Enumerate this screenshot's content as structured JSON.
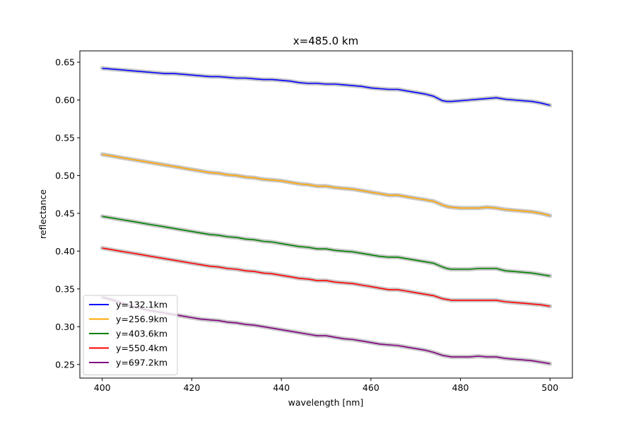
{
  "chart_data": {
    "type": "line",
    "title": "x=485.0 km",
    "xlabel": "wavelength [nm]",
    "ylabel": "reflectance",
    "xlim": [
      395,
      505
    ],
    "ylim": [
      0.232,
      0.665
    ],
    "xticks": [
      400,
      420,
      440,
      460,
      480,
      500
    ],
    "yticks": [
      0.25,
      0.3,
      0.35,
      0.4,
      0.45,
      0.5,
      0.55,
      0.6,
      0.65
    ],
    "ytick_labels": [
      "0.25",
      "0.30",
      "0.35",
      "0.40",
      "0.45",
      "0.50",
      "0.55",
      "0.60",
      "0.65"
    ],
    "grid": false,
    "legend_position": "lower-left",
    "uncertainty_band_color": "#c8c8c8",
    "x": [
      400,
      402,
      404,
      406,
      408,
      410,
      412,
      414,
      416,
      418,
      420,
      422,
      424,
      426,
      428,
      430,
      432,
      434,
      436,
      438,
      440,
      442,
      444,
      446,
      448,
      450,
      452,
      454,
      456,
      458,
      460,
      462,
      464,
      466,
      468,
      470,
      472,
      474,
      476,
      477,
      478,
      480,
      482,
      484,
      486,
      488,
      490,
      492,
      494,
      496,
      498,
      500
    ],
    "series": [
      {
        "name": "y=132.1km",
        "color": "#0000ff",
        "values": [
          0.642,
          0.641,
          0.64,
          0.639,
          0.638,
          0.637,
          0.636,
          0.635,
          0.635,
          0.634,
          0.633,
          0.632,
          0.631,
          0.631,
          0.63,
          0.629,
          0.629,
          0.628,
          0.627,
          0.627,
          0.626,
          0.625,
          0.623,
          0.622,
          0.622,
          0.621,
          0.621,
          0.62,
          0.619,
          0.618,
          0.616,
          0.615,
          0.614,
          0.614,
          0.612,
          0.61,
          0.608,
          0.605,
          0.599,
          0.598,
          0.598,
          0.599,
          0.6,
          0.601,
          0.602,
          0.603,
          0.601,
          0.6,
          0.599,
          0.598,
          0.596,
          0.593
        ]
      },
      {
        "name": "y=256.9km",
        "color": "#ffa500",
        "values": [
          0.528,
          0.526,
          0.524,
          0.522,
          0.52,
          0.518,
          0.516,
          0.514,
          0.512,
          0.51,
          0.508,
          0.506,
          0.504,
          0.503,
          0.501,
          0.5,
          0.498,
          0.497,
          0.495,
          0.494,
          0.493,
          0.491,
          0.489,
          0.488,
          0.486,
          0.486,
          0.484,
          0.483,
          0.482,
          0.48,
          0.478,
          0.476,
          0.474,
          0.474,
          0.472,
          0.47,
          0.468,
          0.466,
          0.461,
          0.459,
          0.458,
          0.457,
          0.457,
          0.457,
          0.458,
          0.457,
          0.455,
          0.454,
          0.453,
          0.452,
          0.45,
          0.447
        ]
      },
      {
        "name": "y=403.6km",
        "color": "#008000",
        "values": [
          0.446,
          0.444,
          0.442,
          0.44,
          0.438,
          0.436,
          0.434,
          0.432,
          0.43,
          0.428,
          0.426,
          0.424,
          0.422,
          0.421,
          0.419,
          0.418,
          0.416,
          0.415,
          0.413,
          0.412,
          0.41,
          0.408,
          0.406,
          0.405,
          0.403,
          0.403,
          0.401,
          0.4,
          0.399,
          0.397,
          0.395,
          0.393,
          0.392,
          0.392,
          0.39,
          0.388,
          0.386,
          0.384,
          0.379,
          0.377,
          0.376,
          0.376,
          0.376,
          0.377,
          0.377,
          0.377,
          0.374,
          0.373,
          0.372,
          0.371,
          0.369,
          0.367
        ]
      },
      {
        "name": "y=550.4km",
        "color": "#ff0000",
        "values": [
          0.404,
          0.402,
          0.4,
          0.398,
          0.396,
          0.394,
          0.392,
          0.39,
          0.388,
          0.386,
          0.384,
          0.382,
          0.38,
          0.379,
          0.377,
          0.376,
          0.374,
          0.373,
          0.371,
          0.37,
          0.368,
          0.366,
          0.364,
          0.363,
          0.361,
          0.361,
          0.359,
          0.358,
          0.357,
          0.355,
          0.353,
          0.351,
          0.349,
          0.349,
          0.347,
          0.345,
          0.343,
          0.341,
          0.337,
          0.336,
          0.335,
          0.335,
          0.335,
          0.335,
          0.335,
          0.335,
          0.333,
          0.332,
          0.331,
          0.33,
          0.329,
          0.327
        ]
      },
      {
        "name": "y=697.2km",
        "color": "#800080",
        "values": [
          0.339,
          0.336,
          0.332,
          0.328,
          0.325,
          0.322,
          0.32,
          0.318,
          0.316,
          0.314,
          0.312,
          0.31,
          0.309,
          0.308,
          0.306,
          0.305,
          0.303,
          0.302,
          0.3,
          0.298,
          0.296,
          0.294,
          0.292,
          0.29,
          0.288,
          0.288,
          0.286,
          0.284,
          0.283,
          0.281,
          0.279,
          0.277,
          0.276,
          0.275,
          0.273,
          0.271,
          0.269,
          0.266,
          0.262,
          0.261,
          0.26,
          0.26,
          0.26,
          0.261,
          0.26,
          0.26,
          0.258,
          0.257,
          0.256,
          0.255,
          0.253,
          0.251
        ]
      }
    ]
  }
}
